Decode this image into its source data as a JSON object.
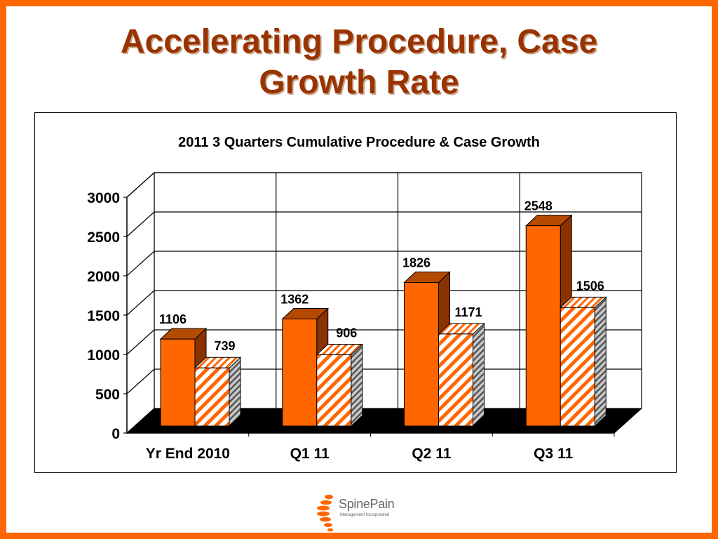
{
  "slide": {
    "title_line1": "Accelerating Procedure, Case",
    "title_line2": "Growth Rate"
  },
  "logo": {
    "name": "SpinePain",
    "subtitle": "Management Incorporated",
    "icon": "spine-vertebrae-icon"
  },
  "colors": {
    "border": "#ff6600",
    "title": "#993300",
    "bar_front": "#ff6600",
    "bar_side": "#8b3300",
    "bar_top": "#b44a00",
    "hatch_stripe": "#ff6600",
    "floor": "#000000"
  },
  "chart_data": {
    "type": "bar",
    "title": "2011 3 Quarters Cumulative Procedure & Case Growth",
    "categories": [
      "Yr End 2010",
      "Q1 11",
      "Q2 11",
      "Q3 11"
    ],
    "series": [
      {
        "style": "solid",
        "values": [
          1106,
          1362,
          1826,
          2548
        ]
      },
      {
        "style": "hatched",
        "values": [
          739,
          906,
          1171,
          1506
        ]
      }
    ],
    "data_labels": [
      [
        "1106",
        "1362",
        "1826",
        "2548"
      ],
      [
        "739",
        "906",
        "1171",
        "1506"
      ]
    ],
    "ylim": [
      0,
      3000
    ],
    "y_ticks": [
      "0",
      "500",
      "1000",
      "1500",
      "2000",
      "2500",
      "3000"
    ],
    "grid": true,
    "legend": "none",
    "three_d": true
  }
}
